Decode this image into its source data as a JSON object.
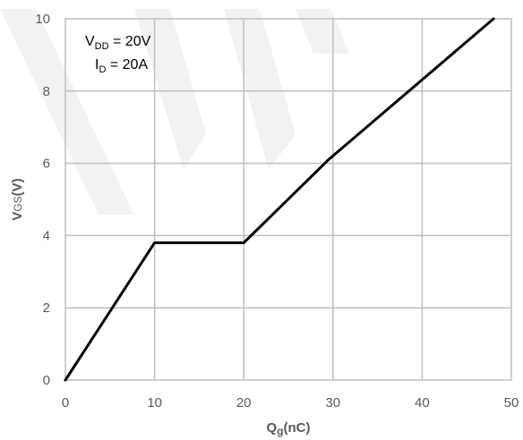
{
  "chart_data": {
    "type": "line",
    "title": "",
    "xlabel": {
      "main": "Q",
      "sub": "g",
      "tail": "(nC)"
    },
    "ylabel": {
      "main": "V",
      "sub": "GS",
      "tail": "(V)"
    },
    "xlim": [
      0,
      50
    ],
    "ylim": [
      0,
      10
    ],
    "xticks": [
      0,
      10,
      20,
      30,
      40,
      50
    ],
    "yticks": [
      0,
      2,
      4,
      6,
      8,
      10
    ],
    "grid": true,
    "series": [
      {
        "color": "#000000",
        "x": [
          0,
          10,
          20,
          29.5,
          48
        ],
        "y": [
          0,
          3.8,
          3.8,
          6.1,
          10
        ]
      }
    ],
    "annotations": [
      {
        "main": "V",
        "sub": "DD",
        "tail": " = 20V"
      },
      {
        "main": "I",
        "sub": "D",
        "tail": " = 20A"
      }
    ],
    "watermark_color": "#f2f2f2"
  }
}
